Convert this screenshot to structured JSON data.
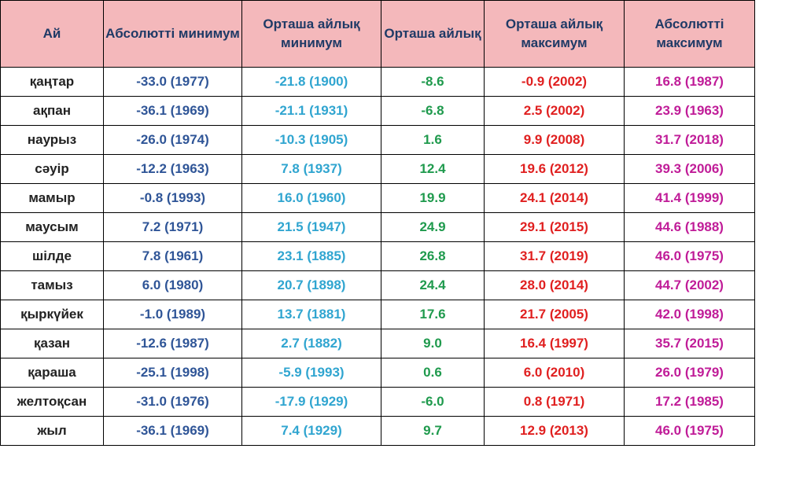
{
  "colors": {
    "header_bg": "#f4b8bb",
    "header_text": "#1f3a66",
    "absolute_minimum": "#2f5597",
    "average_monthly_minimum": "#30a5d0",
    "average_monthly": "#1f9a4d",
    "average_monthly_maximum": "#e02020",
    "absolute_maximum": "#c01c98"
  },
  "headers": {
    "month": "Ай",
    "absolute_minimum": "Абсолютті минимум",
    "average_monthly_minimum": "Орташа айлық минимум",
    "average_monthly": "Орташа айлық",
    "average_monthly_maximum": "Орташа айлық максимум",
    "absolute_maximum": "Абсолютті максимум"
  },
  "rows": [
    [
      "қаңтар",
      "-33.0 (1977)",
      "-21.8 (1900)",
      "-8.6",
      "-0.9 (2002)",
      "16.8 (1987)"
    ],
    [
      "ақпан",
      "-36.1 (1969)",
      "-21.1 (1931)",
      "-6.8",
      "2.5 (2002)",
      "23.9 (1963)"
    ],
    [
      "наурыз",
      "-26.0 (1974)",
      "-10.3 (1905)",
      "1.6",
      "9.9 (2008)",
      "31.7 (2018)"
    ],
    [
      "сәуір",
      "-12.2 (1963)",
      "7.8 (1937)",
      "12.4",
      "19.6 (2012)",
      "39.3 (2006)"
    ],
    [
      "мамыр",
      "-0.8 (1993)",
      "16.0 (1960)",
      "19.9",
      "24.1 (2014)",
      "41.4 (1999)"
    ],
    [
      "маусым",
      "7.2 (1971)",
      "21.5 (1947)",
      "24.9",
      "29.1 (2015)",
      "44.6 (1988)"
    ],
    [
      "шілде",
      "7.8 (1961)",
      "23.1 (1885)",
      "26.8",
      "31.7 (2019)",
      "46.0 (1975)"
    ],
    [
      "тамыз",
      "6.0 (1980)",
      "20.7 (1898)",
      "24.4",
      "28.0 (2014)",
      "44.7 (2002)"
    ],
    [
      "қыркүйек",
      "-1.0 (1989)",
      "13.7 (1881)",
      "17.6",
      "21.7 (2005)",
      "42.0 (1998)"
    ],
    [
      "қазан",
      "-12.6 (1987)",
      "2.7 (1882)",
      "9.0",
      "16.4 (1997)",
      "35.7 (2015)"
    ],
    [
      "қараша",
      "-25.1 (1998)",
      "-5.9 (1993)",
      "0.6",
      "6.0 (2010)",
      "26.0 (1979)"
    ],
    [
      "желтоқсан",
      "-31.0 (1976)",
      "-17.9 (1929)",
      "-6.0",
      "0.8 (1971)",
      "17.2 (1985)"
    ],
    [
      "жыл",
      "-36.1 (1969)",
      "7.4 (1929)",
      "9.7",
      "12.9 (2013)",
      "46.0 (1975)"
    ]
  ]
}
